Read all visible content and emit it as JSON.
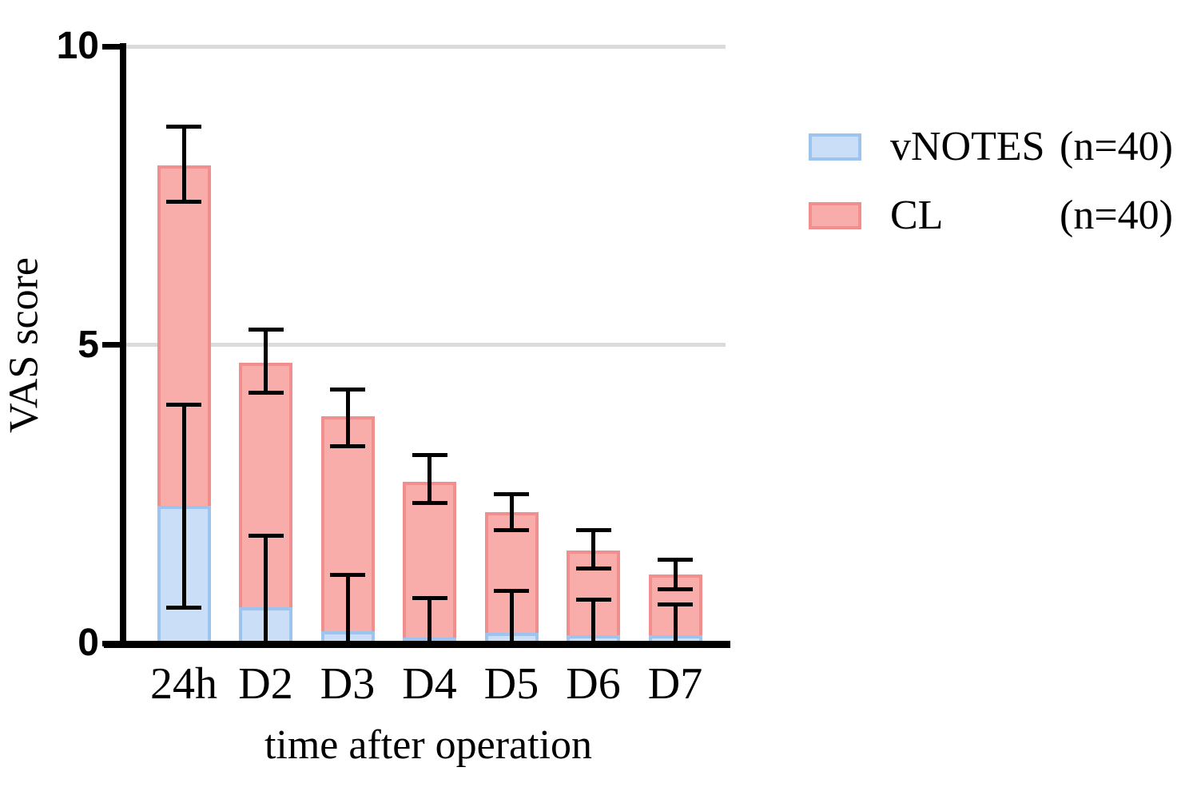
{
  "legend": {
    "position": "right",
    "entries": [
      {
        "key": "vnotes",
        "label": "vNOTES",
        "count": "(n=40)",
        "fill": "#CBDEF7",
        "border": "#9DC3EF"
      },
      {
        "key": "cl",
        "label": "CL",
        "count": "(n=40)",
        "fill": "#F9ADAB",
        "border": "#F08F8E"
      }
    ]
  },
  "chart_data": {
    "type": "bar",
    "title": "",
    "xlabel": "time after operation",
    "ylabel": "VAS score",
    "categories": [
      "24h",
      "D2",
      "D3",
      "D4",
      "D5",
      "D6",
      "D7"
    ],
    "ylim": [
      0,
      10
    ],
    "yticks": [
      0,
      5,
      10
    ],
    "gridlines_at": [
      5,
      10
    ],
    "grid_color": "#DBDBDB",
    "grid_on": true,
    "bar_style": "overlapped",
    "legend_position": "right",
    "series": [
      {
        "name": "CL",
        "count_label": "(n=40)",
        "fill": "#F9ADAB",
        "border": "#F08F8E",
        "z": "behind",
        "values": [
          8.0,
          4.7,
          3.8,
          2.7,
          2.2,
          1.55,
          1.15
        ],
        "error_hi": [
          8.65,
          5.25,
          4.25,
          3.15,
          2.5,
          1.9,
          1.4
        ],
        "error_lo": [
          7.4,
          4.2,
          3.3,
          2.35,
          1.9,
          1.25,
          0.9
        ]
      },
      {
        "name": "vNOTES",
        "count_label": "(n=40)",
        "fill": "#CBDEF7",
        "border": "#9DC3EF",
        "z": "front",
        "values": [
          2.3,
          0.6,
          0.2,
          0.1,
          0.17,
          0.14,
          0.13
        ],
        "error_hi": [
          4.0,
          1.8,
          1.15,
          0.76,
          0.88,
          0.73,
          0.65
        ],
        "error_lo": [
          0.6,
          0,
          0,
          0,
          0,
          0,
          0
        ]
      }
    ]
  }
}
